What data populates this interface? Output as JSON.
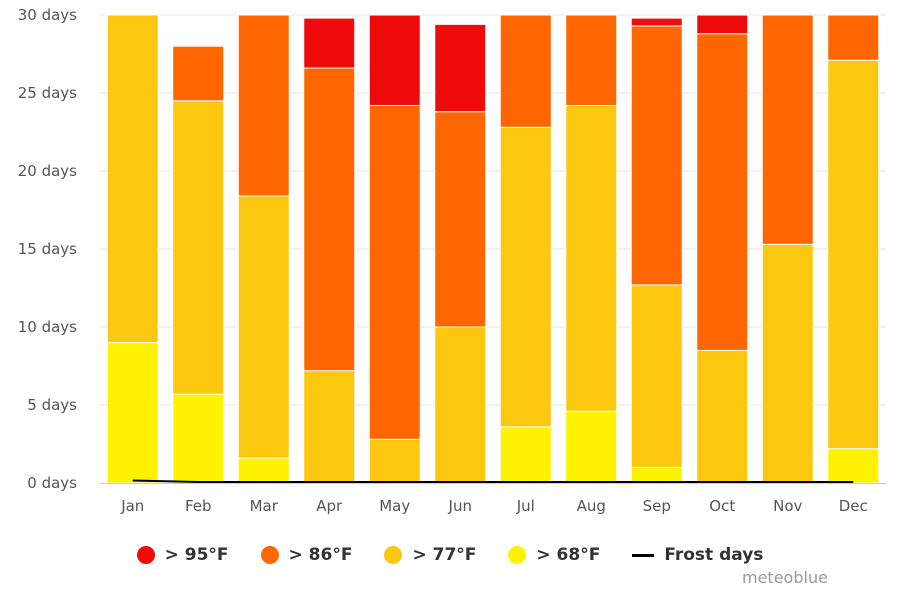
{
  "chart_data": {
    "type": "bar",
    "stacked": true,
    "categories": [
      "Jan",
      "Feb",
      "Mar",
      "Apr",
      "May",
      "Jun",
      "Jul",
      "Aug",
      "Sep",
      "Oct",
      "Nov",
      "Dec"
    ],
    "yticks": [
      "0 days",
      "5 days",
      "10 days",
      "15 days",
      "20 days",
      "25 days",
      "30 days"
    ],
    "ylim": [
      0,
      30
    ],
    "grid": true,
    "legend_position": "bottom",
    "series": [
      {
        "name": "> 68°F",
        "color": "#fff200",
        "values": [
          9.0,
          5.7,
          1.6,
          0,
          0,
          0,
          3.6,
          4.6,
          1.0,
          0,
          0,
          2.2
        ]
      },
      {
        "name": "> 77°F",
        "color": "#fcc70f",
        "values": [
          21.0,
          18.8,
          16.8,
          7.2,
          2.8,
          10.0,
          19.2,
          19.6,
          11.7,
          8.5,
          15.3,
          24.9
        ]
      },
      {
        "name": "> 86°F",
        "color": "#ff6600",
        "values": [
          0,
          3.5,
          11.6,
          19.4,
          21.4,
          13.8,
          7.2,
          5.8,
          16.6,
          20.3,
          14.7,
          2.9
        ]
      },
      {
        "name": "> 95°F",
        "color": "#ef0b0b",
        "values": [
          0,
          0,
          0,
          3.2,
          5.8,
          5.6,
          0,
          0,
          0.5,
          1.2,
          0,
          0
        ]
      }
    ],
    "line_series": {
      "name": "Frost days",
      "color": "#000000",
      "values": [
        0.1,
        0,
        0,
        0,
        0,
        0,
        0,
        0,
        0,
        0,
        0,
        0
      ]
    }
  },
  "legend": [
    {
      "label": "> 95°F",
      "color": "#ef0b0b",
      "icon": "circle"
    },
    {
      "label": "> 86°F",
      "color": "#ff6600",
      "icon": "circle"
    },
    {
      "label": "> 77°F",
      "color": "#fcc70f",
      "icon": "circle"
    },
    {
      "label": "> 68°F",
      "color": "#fff200",
      "icon": "circle"
    },
    {
      "label": "Frost days",
      "color": "#000000",
      "icon": "line"
    }
  ],
  "brand": "meteoblue"
}
